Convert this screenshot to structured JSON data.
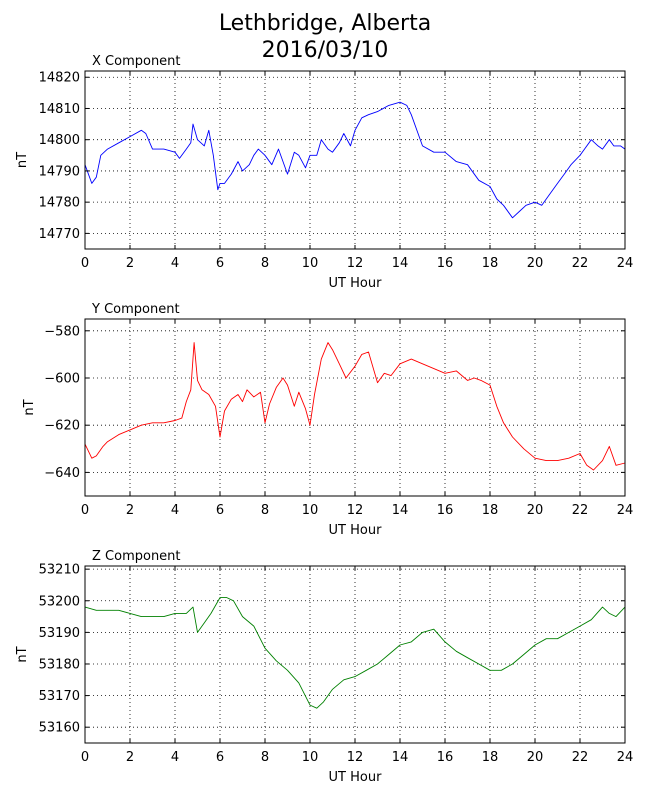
{
  "figure": {
    "title": "Lethbridge, Alberta",
    "subtitle": "2016/03/10"
  },
  "chart_data": [
    {
      "type": "line",
      "title": "X Component",
      "xlabel": "UT Hour",
      "ylabel": "nT",
      "xlim": [
        0,
        24
      ],
      "ylim": [
        14765,
        14822
      ],
      "xticks": [
        0,
        2,
        4,
        6,
        8,
        10,
        12,
        14,
        16,
        18,
        20,
        22,
        24
      ],
      "yticks": [
        14770,
        14780,
        14790,
        14800,
        14810,
        14820
      ],
      "grid": true,
      "color": "#0000ff",
      "series": [
        {
          "x": [
            0,
            0.3,
            0.5,
            0.7,
            1.0,
            1.5,
            2.0,
            2.5,
            2.7,
            3.0,
            3.5,
            4.0,
            4.2,
            4.5,
            4.7,
            4.8,
            5.0,
            5.3,
            5.5,
            5.7,
            5.9,
            6.0,
            6.2,
            6.5,
            6.8,
            7.0,
            7.3,
            7.5,
            7.7,
            8.0,
            8.3,
            8.6,
            9.0,
            9.3,
            9.5,
            9.8,
            10.0,
            10.3,
            10.5,
            10.8,
            11.0,
            11.3,
            11.5,
            11.8,
            12.0,
            12.3,
            12.6,
            13.0,
            13.5,
            14.0,
            14.3,
            14.5,
            15.0,
            15.5,
            16.0,
            16.5,
            17.0,
            17.5,
            18.0,
            18.3,
            18.6,
            19.0,
            19.3,
            19.6,
            20.0,
            20.3,
            20.6,
            21.0,
            21.3,
            21.6,
            22.0,
            22.2,
            22.5,
            22.8,
            23.0,
            23.3,
            23.5,
            23.8,
            24.0
          ],
          "y": [
            14792,
            14786,
            14788,
            14795,
            14797,
            14799,
            14801,
            14803,
            14802,
            14797,
            14797,
            14796,
            14794,
            14797,
            14799,
            14805,
            14800,
            14798,
            14803,
            14795,
            14784,
            14786,
            14786,
            14789,
            14793,
            14790,
            14792,
            14795,
            14797,
            14795,
            14792,
            14797,
            14789,
            14796,
            14795,
            14791,
            14795,
            14795,
            14800,
            14797,
            14796,
            14799,
            14802,
            14798,
            14803,
            14807,
            14808,
            14809,
            14811,
            14812,
            14811,
            14808,
            14798,
            14796,
            14796,
            14793,
            14792,
            14787,
            14785,
            14781,
            14779,
            14775,
            14777,
            14779,
            14780,
            14779,
            14782,
            14786,
            14789,
            14792,
            14795,
            14797,
            14800,
            14798,
            14797,
            14800,
            14798,
            14798,
            14797
          ]
        }
      ]
    },
    {
      "type": "line",
      "title": "Y Component",
      "xlabel": "UT Hour",
      "ylabel": "nT",
      "xlim": [
        0,
        24
      ],
      "ylim": [
        -650,
        -575
      ],
      "xticks": [
        0,
        2,
        4,
        6,
        8,
        10,
        12,
        14,
        16,
        18,
        20,
        22,
        24
      ],
      "yticks": [
        -640,
        -620,
        -600,
        -580
      ],
      "grid": true,
      "color": "#ff0000",
      "series": [
        {
          "x": [
            0,
            0.3,
            0.5,
            0.8,
            1.0,
            1.5,
            2.0,
            2.5,
            3.0,
            3.5,
            4.0,
            4.3,
            4.5,
            4.7,
            4.85,
            5.0,
            5.2,
            5.5,
            5.8,
            6.0,
            6.2,
            6.5,
            6.8,
            7.0,
            7.2,
            7.5,
            7.8,
            8.0,
            8.2,
            8.5,
            8.8,
            9.0,
            9.3,
            9.5,
            9.8,
            10.0,
            10.2,
            10.5,
            10.8,
            11.0,
            11.3,
            11.6,
            12.0,
            12.3,
            12.6,
            13.0,
            13.3,
            13.6,
            14.0,
            14.5,
            15.0,
            15.5,
            16.0,
            16.5,
            17.0,
            17.3,
            17.6,
            18.0,
            18.3,
            18.6,
            19.0,
            19.5,
            20.0,
            20.5,
            21.0,
            21.5,
            22.0,
            22.3,
            22.6,
            23.0,
            23.3,
            23.6,
            24.0
          ],
          "y": [
            -628,
            -634,
            -633,
            -629,
            -627,
            -624,
            -622,
            -620,
            -619,
            -619,
            -618,
            -617,
            -610,
            -605,
            -585,
            -601,
            -605,
            -607,
            -612,
            -625,
            -614,
            -609,
            -607,
            -610,
            -605,
            -608,
            -606,
            -619,
            -611,
            -604,
            -600,
            -603,
            -612,
            -606,
            -613,
            -620,
            -607,
            -592,
            -585,
            -588,
            -594,
            -600,
            -595,
            -590,
            -589,
            -602,
            -598,
            -599,
            -594,
            -592,
            -594,
            -596,
            -598,
            -597,
            -601,
            -600,
            -601,
            -603,
            -612,
            -619,
            -625,
            -630,
            -634,
            -635,
            -635,
            -634,
            -632,
            -637,
            -639,
            -635,
            -629,
            -637,
            -636
          ]
        }
      ]
    },
    {
      "type": "line",
      "title": "Z Component",
      "xlabel": "UT Hour",
      "ylabel": "nT",
      "xlim": [
        0,
        24
      ],
      "ylim": [
        53155,
        53211
      ],
      "xticks": [
        0,
        2,
        4,
        6,
        8,
        10,
        12,
        14,
        16,
        18,
        20,
        22,
        24
      ],
      "yticks": [
        53160,
        53170,
        53180,
        53190,
        53200,
        53210
      ],
      "grid": true,
      "color": "#008000",
      "series": [
        {
          "x": [
            0,
            0.5,
            1.0,
            1.5,
            2.0,
            2.5,
            3.0,
            3.5,
            4.0,
            4.5,
            4.8,
            5.0,
            5.3,
            5.6,
            6.0,
            6.3,
            6.6,
            7.0,
            7.5,
            8.0,
            8.5,
            9.0,
            9.5,
            10.0,
            10.3,
            10.6,
            11.0,
            11.5,
            12.0,
            12.5,
            13.0,
            13.5,
            14.0,
            14.5,
            15.0,
            15.5,
            16.0,
            16.5,
            17.0,
            17.5,
            18.0,
            18.5,
            19.0,
            19.5,
            20.0,
            20.5,
            21.0,
            21.5,
            22.0,
            22.5,
            23.0,
            23.3,
            23.6,
            24.0
          ],
          "y": [
            53198,
            53197,
            53197,
            53197,
            53196,
            53195,
            53195,
            53195,
            53196,
            53196,
            53198,
            53190,
            53193,
            53196,
            53201,
            53201,
            53200,
            53195,
            53192,
            53185,
            53181,
            53178,
            53174,
            53167,
            53166,
            53168,
            53172,
            53175,
            53176,
            53178,
            53180,
            53183,
            53186,
            53187,
            53190,
            53191,
            53187,
            53184,
            53182,
            53180,
            53178,
            53178,
            53180,
            53183,
            53186,
            53188,
            53188,
            53190,
            53192,
            53194,
            53198,
            53196,
            53195,
            53198
          ]
        }
      ]
    }
  ]
}
